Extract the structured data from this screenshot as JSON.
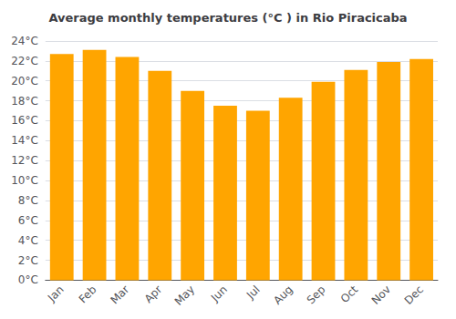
{
  "chart_data": {
    "type": "bar",
    "title": "Average monthly temperatures (°C ) in Rio Piracicaba",
    "categories": [
      "Jan",
      "Feb",
      "Mar",
      "Apr",
      "May",
      "Jun",
      "Jul",
      "Aug",
      "Sep",
      "Oct",
      "Nov",
      "Dec"
    ],
    "values": [
      22.7,
      23.1,
      22.4,
      21.0,
      19.0,
      17.5,
      17.0,
      18.3,
      19.9,
      21.1,
      21.9,
      22.2
    ],
    "color": "#FFA500",
    "ylim": [
      0,
      24
    ],
    "yticks": [
      {
        "value": 0,
        "label": "0°C"
      },
      {
        "value": 2,
        "label": "2°C"
      },
      {
        "value": 4,
        "label": "4°C"
      },
      {
        "value": 6,
        "label": "6°C"
      },
      {
        "value": 8,
        "label": "8°C"
      },
      {
        "value": 10,
        "label": "10°C"
      },
      {
        "value": 12,
        "label": "12°C"
      },
      {
        "value": 14,
        "label": "14°C"
      },
      {
        "value": 16,
        "label": "16°C"
      },
      {
        "value": 18,
        "label": "18°C"
      },
      {
        "value": 20,
        "label": "20°C"
      },
      {
        "value": 22,
        "label": "22°C"
      },
      {
        "value": 24,
        "label": "24°C"
      }
    ],
    "grid": true
  }
}
